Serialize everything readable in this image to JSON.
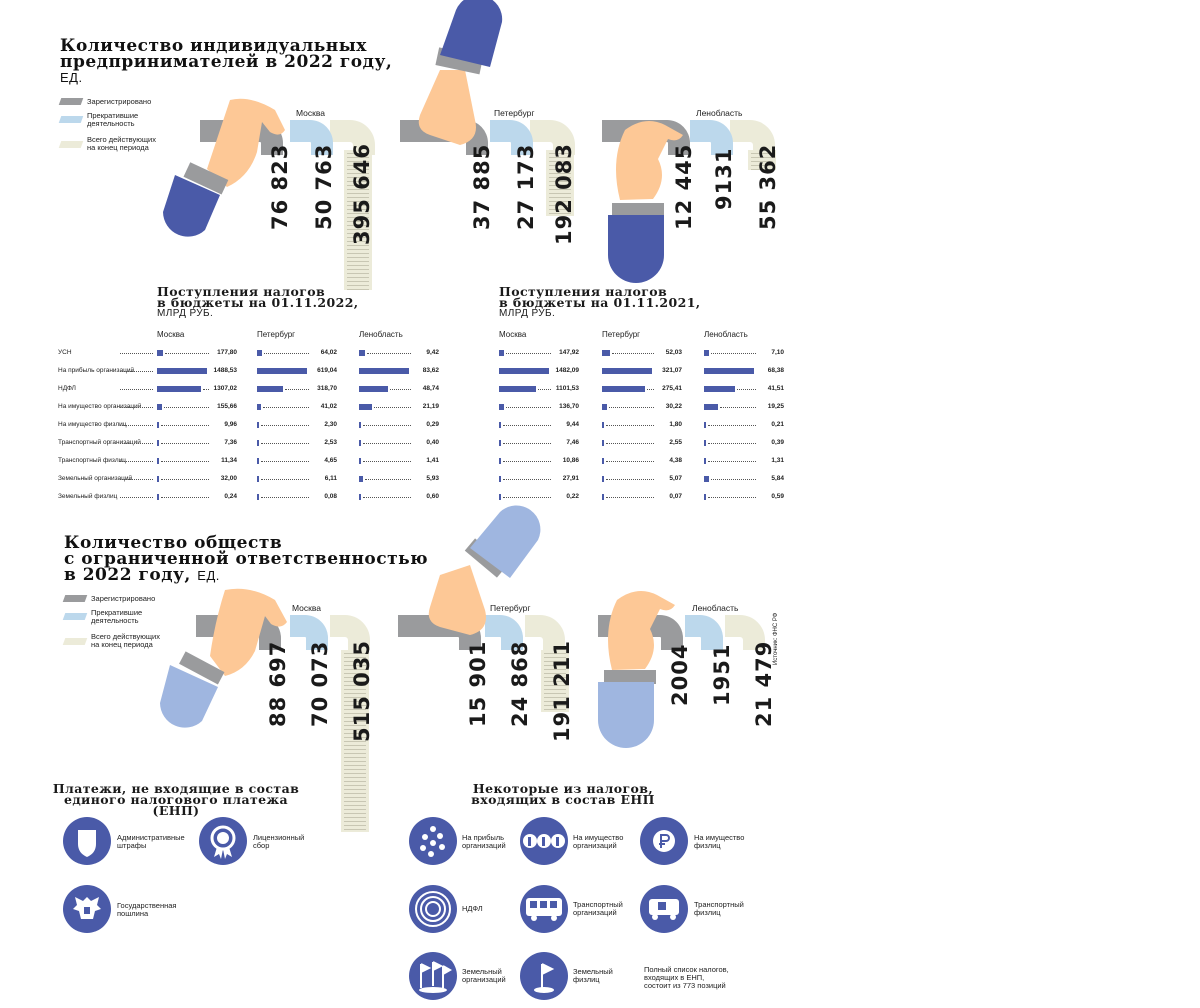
{
  "ip_section": {
    "title_line1": "Количество индивидуальных",
    "title_line2": "предпринимателей в 2022 году,",
    "unit": "ЕД.",
    "legend": {
      "registered": "Зарегистрировано",
      "stopped_1": "Прекратившие",
      "stopped_2": "деятельность",
      "active_1": "Всего действующих",
      "active_2": "на конец периода"
    },
    "cities": [
      {
        "name": "Москва",
        "registered": "76 823",
        "stopped": "50 763",
        "active": "395 646"
      },
      {
        "name": "Петербург",
        "registered": "37 885",
        "stopped": "27 173",
        "active": "192 083"
      },
      {
        "name": "Ленобласть",
        "registered": "12 445",
        "stopped": "9131",
        "active": "55 362"
      }
    ]
  },
  "tax_2022": {
    "title_line1": "Поступления налогов",
    "title_line2": "в бюджеты на 01.11.2022,",
    "unit": "МЛРД РУБ.",
    "columns": [
      "Москва",
      "Петербург",
      "Ленобласть"
    ],
    "rows": [
      {
        "label": "УСН",
        "values": [
          "177,80",
          "64,02",
          "9,42"
        ]
      },
      {
        "label": "На прибыль организаций",
        "values": [
          "1488,53",
          "619,04",
          "83,62"
        ]
      },
      {
        "label": "НДФЛ",
        "values": [
          "1307,02",
          "318,70",
          "48,74"
        ]
      },
      {
        "label": "На имущество организаций",
        "values": [
          "155,66",
          "41,02",
          "21,19"
        ]
      },
      {
        "label": "На имущество физлиц",
        "values": [
          "9,96",
          "2,30",
          "0,29"
        ]
      },
      {
        "label": "Транспортный организаций",
        "values": [
          "7,36",
          "2,53",
          "0,40"
        ]
      },
      {
        "label": "Транспортный физлиц",
        "values": [
          "11,34",
          "4,65",
          "1,41"
        ]
      },
      {
        "label": "Земельный организаций",
        "values": [
          "32,00",
          "6,11",
          "5,93"
        ]
      },
      {
        "label": "Земельный физлиц",
        "values": [
          "0,24",
          "0,08",
          "0,60"
        ]
      }
    ],
    "bar_fraction": [
      [
        0.12,
        0.1,
        0.11
      ],
      [
        1.0,
        1.0,
        1.0
      ],
      [
        0.88,
        0.52,
        0.58
      ],
      [
        0.1,
        0.07,
        0.25
      ],
      [
        0.01,
        0.01,
        0.01
      ],
      [
        0.01,
        0.01,
        0.01
      ],
      [
        0.01,
        0.01,
        0.02
      ],
      [
        0.02,
        0.01,
        0.07
      ],
      [
        0.005,
        0.005,
        0.01
      ]
    ]
  },
  "tax_2021": {
    "title_line1": "Поступления налогов",
    "title_line2": "в бюджеты на 01.11.2021,",
    "unit": "МЛРД РУБ.",
    "columns": [
      "Москва",
      "Петербург",
      "Ленобласть"
    ],
    "rows": [
      {
        "values": [
          "147,92",
          "52,03",
          "7,10"
        ]
      },
      {
        "values": [
          "1482,09",
          "321,07",
          "68,38"
        ]
      },
      {
        "values": [
          "1101,53",
          "275,41",
          "41,51"
        ]
      },
      {
        "values": [
          "136,70",
          "30,22",
          "19,25"
        ]
      },
      {
        "values": [
          "9,44",
          "1,80",
          "0,21"
        ]
      },
      {
        "values": [
          "7,46",
          "2,55",
          "0,39"
        ]
      },
      {
        "values": [
          "10,86",
          "4,38",
          "1,31"
        ]
      },
      {
        "values": [
          "27,91",
          "5,07",
          "5,84"
        ]
      },
      {
        "values": [
          "0,22",
          "0,07",
          "0,59"
        ]
      }
    ],
    "bar_fraction": [
      [
        0.1,
        0.16,
        0.1
      ],
      [
        1.0,
        1.0,
        1.0
      ],
      [
        0.74,
        0.86,
        0.61
      ],
      [
        0.09,
        0.09,
        0.28
      ],
      [
        0.01,
        0.01,
        0.01
      ],
      [
        0.01,
        0.01,
        0.01
      ],
      [
        0.01,
        0.01,
        0.02
      ],
      [
        0.02,
        0.02,
        0.09
      ],
      [
        0.005,
        0.005,
        0.01
      ]
    ]
  },
  "llc_section": {
    "title_line1": "Количество обществ",
    "title_line2": "с ограниченной ответственностью",
    "title_line3": "в 2022 году,",
    "unit": "ЕД.",
    "legend": {
      "registered": "Зарегистрировано",
      "stopped_1": "Прекратившие",
      "stopped_2": "деятельность",
      "active_1": "Всего действующих",
      "active_2": "на конец периода"
    },
    "cities": [
      {
        "name": "Москва",
        "registered": "88 697",
        "stopped": "70 073",
        "active": "515 035"
      },
      {
        "name": "Петербург",
        "registered": "15 901",
        "stopped": "24 868",
        "active": "191 211"
      },
      {
        "name": "Ленобласть",
        "registered": "2004",
        "stopped": "1951",
        "active": "21 479"
      }
    ],
    "source": "Источник: ФНС РФ"
  },
  "not_enp": {
    "title_line1": "Платежи, не входящие в состав",
    "title_line2": "единого налогового платежа",
    "title_line3": "(ЕНП)",
    "items": [
      {
        "l1": "Административные",
        "l2": "штрафы",
        "icon": "shield-icon"
      },
      {
        "l1": "Лицензионный",
        "l2": "сбор",
        "icon": "medal-icon"
      },
      {
        "l1": "Государственная",
        "l2": "пошлина",
        "icon": "eagle-emblem-icon"
      }
    ]
  },
  "enp": {
    "title_line1": "Некоторые из налогов,",
    "title_line2": "входящих в состав ЕНП",
    "items": [
      {
        "l1": "На прибыль",
        "l2": "организаций",
        "icon": "coins-icon"
      },
      {
        "l1": "На имущество",
        "l2": "организаций",
        "icon": "ruble-buildings-icon"
      },
      {
        "l1": "На имущество",
        "l2": "физлиц",
        "icon": "ruble-coin-icon"
      },
      {
        "l1": "НДФЛ",
        "l2": "",
        "icon": "target-rings-icon"
      },
      {
        "l1": "Транспортный",
        "l2": "организаций",
        "icon": "bus-icon"
      },
      {
        "l1": "Транспортный",
        "l2": "физлиц",
        "icon": "car-icon"
      },
      {
        "l1": "Земельный",
        "l2": "организаций",
        "icon": "flags-icon"
      },
      {
        "l1": "Земельный",
        "l2": "физлиц",
        "icon": "flag-icon"
      }
    ],
    "note_1": "Полный список налогов,",
    "note_2": "входящих в ЕНП,",
    "note_3": "состоит из 773 позиций"
  },
  "colors": {
    "accent_blue": "#4a5aa8",
    "light_blue": "#9fb6e0",
    "registered_gray": "#9a9b9d",
    "stopped_blue": "#bcd8ec",
    "active_cream": "#ecebd9",
    "skin": "#fdc896"
  }
}
